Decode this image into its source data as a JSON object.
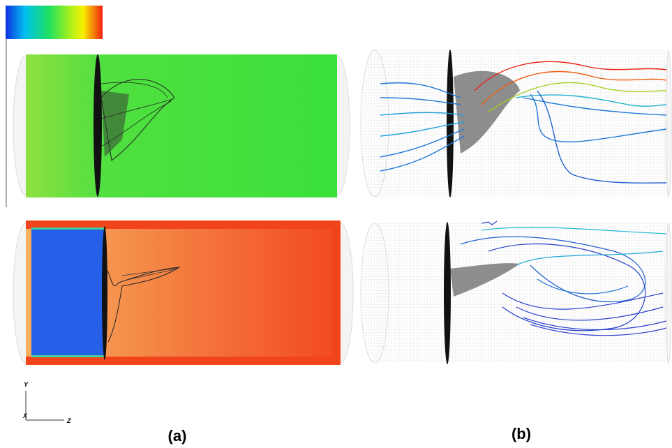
{
  "figure": {
    "axes": {
      "y": "Y",
      "x": "X",
      "z": "Z"
    },
    "panel_labels": [
      "(a)",
      "(b)"
    ]
  }
}
